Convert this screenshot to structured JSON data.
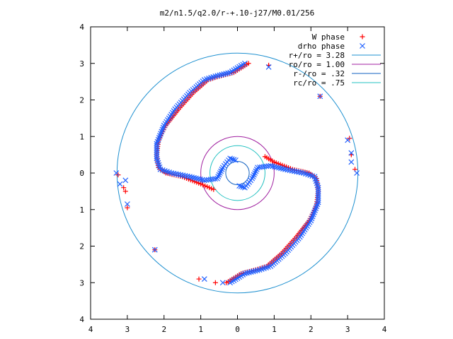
{
  "chart_data": {
    "type": "scatter",
    "title": "m2/n1.5/q2.0/r-+.10-j27/M0.01/256",
    "xlabel": "",
    "ylabel": "",
    "xlim": [
      -4,
      4
    ],
    "ylim": [
      -4,
      4
    ],
    "x_tick_labels": [
      "4",
      "3",
      "2",
      "1",
      "0",
      "1",
      "2",
      "3",
      "4"
    ],
    "y_tick_labels": [
      "4",
      "3",
      "2",
      "1",
      "0",
      "1",
      "2",
      "3",
      "4"
    ],
    "grid": false,
    "legend_position": "top-right",
    "series": [
      {
        "name": "W phase",
        "marker": "plus",
        "color": "#ff0000",
        "arms": [
          [
            [
              -0.3,
              -3.0
            ],
            [
              0.1,
              -2.75
            ],
            [
              0.5,
              -2.65
            ],
            [
              0.8,
              -2.55
            ],
            [
              1.2,
              -2.2
            ],
            [
              1.6,
              -1.75
            ],
            [
              1.95,
              -1.3
            ],
            [
              2.15,
              -0.9
            ],
            [
              2.2,
              -0.5
            ],
            [
              2.15,
              -0.15
            ],
            [
              1.95,
              0.0
            ],
            [
              1.5,
              0.1
            ],
            [
              1.0,
              0.3
            ],
            [
              0.75,
              0.45
            ]
          ],
          [
            [
              0.3,
              3.0
            ],
            [
              -0.1,
              2.75
            ],
            [
              -0.5,
              2.65
            ],
            [
              -0.8,
              2.55
            ],
            [
              -1.2,
              2.2
            ],
            [
              -1.6,
              1.75
            ],
            [
              -1.95,
              1.3
            ],
            [
              -2.15,
              0.9
            ],
            [
              -2.2,
              0.5
            ],
            [
              -2.15,
              0.15
            ],
            [
              -1.95,
              0.0
            ],
            [
              -1.5,
              -0.1
            ],
            [
              -1.0,
              -0.3
            ],
            [
              -0.65,
              -0.45
            ]
          ]
        ],
        "extra": [
          [
            -3.25,
            -0.05
          ],
          [
            -3.1,
            -0.4
          ],
          [
            -3.05,
            -0.5
          ],
          [
            -3.0,
            -0.95
          ],
          [
            -2.25,
            -2.1
          ],
          [
            -1.05,
            -2.9
          ],
          [
            -0.6,
            -3.0
          ],
          [
            0.85,
            2.95
          ],
          [
            2.25,
            2.1
          ],
          [
            3.05,
            0.95
          ],
          [
            3.1,
            0.5
          ],
          [
            3.2,
            0.1
          ]
        ]
      },
      {
        "name": "drho phase",
        "marker": "x",
        "color": "#2060ff",
        "arms": [
          [
            [
              -0.2,
              -3.0
            ],
            [
              0.2,
              -2.75
            ],
            [
              0.6,
              -2.65
            ],
            [
              0.9,
              -2.55
            ],
            [
              1.3,
              -2.2
            ],
            [
              1.7,
              -1.75
            ],
            [
              2.0,
              -1.3
            ],
            [
              2.2,
              -0.8
            ],
            [
              2.2,
              -0.4
            ],
            [
              2.1,
              -0.1
            ],
            [
              1.8,
              0.0
            ],
            [
              1.3,
              0.1
            ],
            [
              0.9,
              0.2
            ],
            [
              0.55,
              0.15
            ],
            [
              0.4,
              -0.15
            ],
            [
              0.2,
              -0.4
            ],
            [
              0.05,
              -0.35
            ]
          ],
          [
            [
              0.2,
              3.0
            ],
            [
              -0.2,
              2.75
            ],
            [
              -0.6,
              2.65
            ],
            [
              -0.9,
              2.55
            ],
            [
              -1.3,
              2.2
            ],
            [
              -1.7,
              1.75
            ],
            [
              -2.0,
              1.3
            ],
            [
              -2.2,
              0.8
            ],
            [
              -2.2,
              0.4
            ],
            [
              -2.1,
              0.1
            ],
            [
              -1.8,
              0.0
            ],
            [
              -1.3,
              -0.1
            ],
            [
              -0.9,
              -0.2
            ],
            [
              -0.55,
              -0.15
            ],
            [
              -0.4,
              0.15
            ],
            [
              -0.2,
              0.4
            ],
            [
              -0.05,
              0.35
            ]
          ]
        ],
        "extra": [
          [
            -3.3,
            0.0
          ],
          [
            -3.2,
            -0.3
          ],
          [
            -3.0,
            -0.85
          ],
          [
            -2.25,
            -2.1
          ],
          [
            -0.9,
            -2.9
          ],
          [
            -0.4,
            -3.0
          ],
          [
            0.85,
            2.9
          ],
          [
            2.25,
            2.1
          ],
          [
            3.0,
            0.9
          ],
          [
            3.1,
            0.3
          ],
          [
            3.25,
            0.0
          ],
          [
            -3.05,
            -0.2
          ],
          [
            3.1,
            0.55
          ]
        ]
      },
      {
        "name": "r+/ro = 3.28",
        "type": "circle",
        "r": 3.28,
        "color": "#1e90d0"
      },
      {
        "name": "ro/ro = 1.00",
        "type": "circle",
        "r": 1.0,
        "color": "#a020a0"
      },
      {
        "name": "r-/ro = .32",
        "type": "circle",
        "r": 0.32,
        "color": "#1060c0"
      },
      {
        "name": "rc/ro = .75",
        "type": "circle",
        "r": 0.75,
        "color": "#20c0c0"
      }
    ]
  }
}
